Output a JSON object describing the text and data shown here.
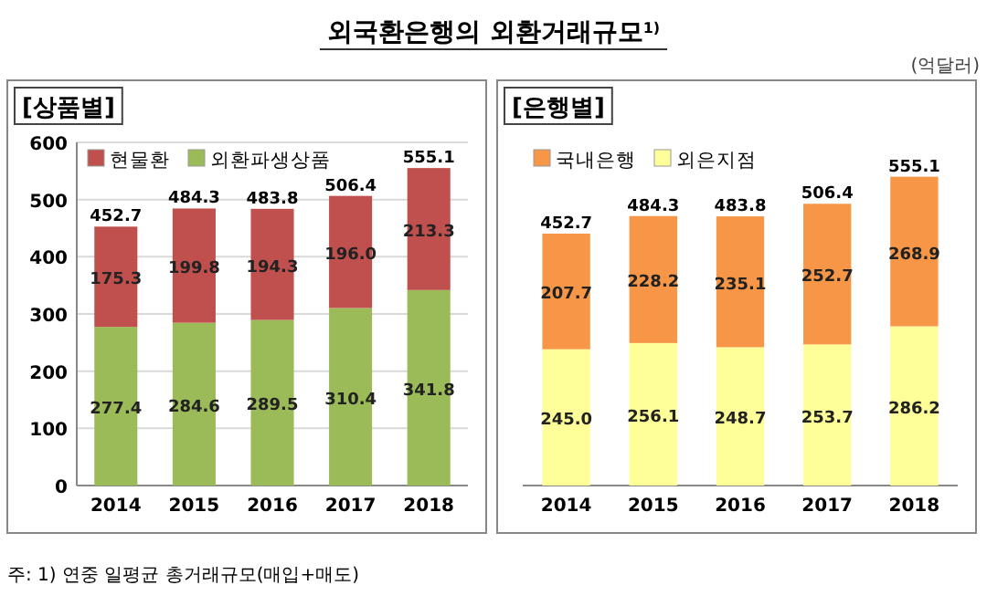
{
  "chart_data": [
    {
      "type": "bar",
      "stacked": true,
      "title": "[상품별]",
      "categories": [
        "2014",
        "2015",
        "2016",
        "2017",
        "2018"
      ],
      "series": [
        {
          "name": "외환파생상품",
          "color": "#9bbb59",
          "values": [
            277.4,
            284.6,
            289.5,
            310.4,
            341.8
          ],
          "value_labels": [
            "277.4",
            "284.6",
            "289.5",
            "310.4",
            "341.8"
          ]
        },
        {
          "name": "현물환",
          "color": "#c0504d",
          "values": [
            175.3,
            199.8,
            194.3,
            196.0,
            213.3
          ],
          "value_labels": [
            "175.3",
            "199.8",
            "194.3",
            "196.0",
            "213.3"
          ]
        }
      ],
      "totals": [
        "452.7",
        "484.3",
        "483.8",
        "506.4",
        "555.1"
      ],
      "ylim": [
        0,
        600
      ],
      "yticks": [
        0,
        100,
        200,
        300,
        400,
        500,
        600
      ],
      "grid": "y",
      "legend": "top left",
      "annotations": [
        "외국환은행의 외환거래규모$^{1)}$",
        "주: 1) 연중 일평균 총거래규모(매입+매도)"
      ]
    },
    {
      "type": "bar",
      "stacked": true,
      "title": "[은행별]",
      "categories": [
        "2014",
        "2015",
        "2016",
        "2017",
        "2018"
      ],
      "series": [
        {
          "name": "외은지점",
          "color": "#ffff99",
          "values": [
            245.0,
            256.1,
            248.7,
            253.7,
            286.2
          ],
          "value_labels": [
            "245.0",
            "256.1",
            "248.7",
            "253.7",
            "286.2"
          ]
        },
        {
          "name": "국내은행",
          "color": "#f79646",
          "values": [
            207.7,
            228.2,
            235.1,
            252.7,
            268.9
          ],
          "value_labels": [
            "207.7",
            "228.2",
            "235.1",
            "252.7",
            "268.9"
          ]
        }
      ],
      "totals": [
        "452.7",
        "484.3",
        "483.8",
        "506.4",
        "555.1"
      ],
      "tick_labels": "x",
      "legend": "top left",
      "annotations": [
        "(억달러)"
      ]
    }
  ]
}
